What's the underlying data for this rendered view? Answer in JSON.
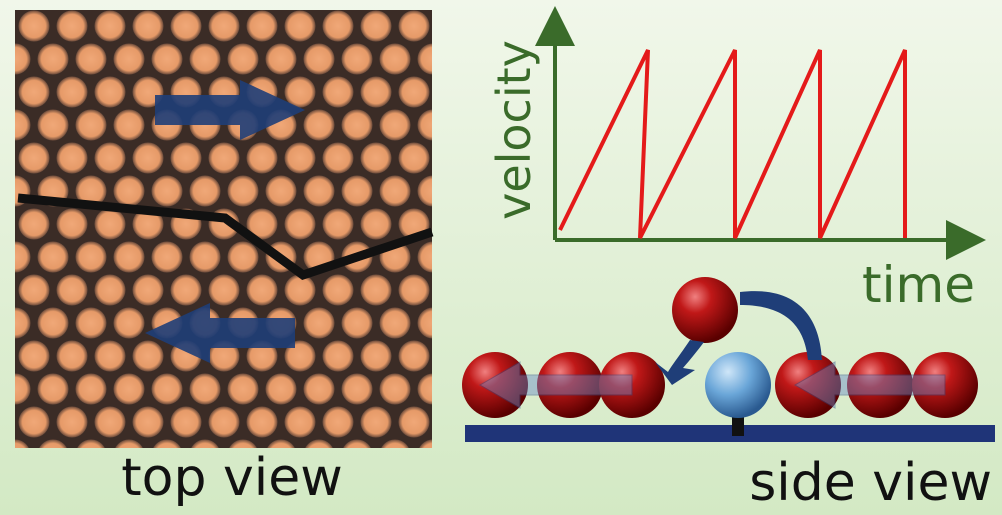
{
  "top_panel": {
    "caption": "top view"
  },
  "plot": {
    "y_label": "velocity",
    "x_label": "time"
  },
  "side_panel": {
    "caption": "side view"
  }
}
